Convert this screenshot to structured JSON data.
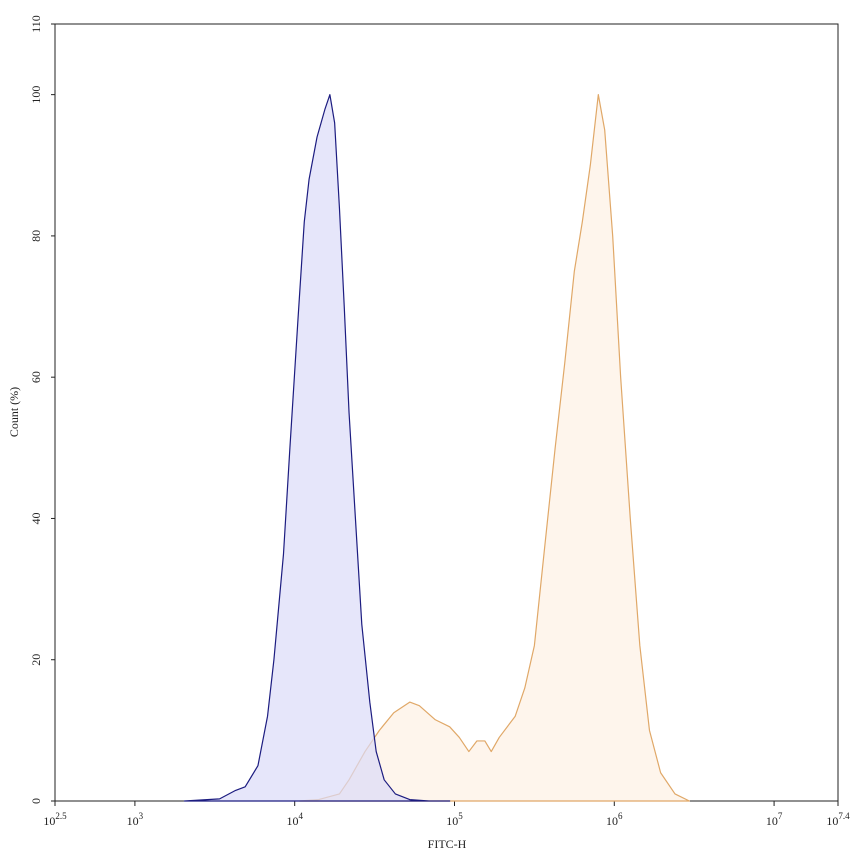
{
  "chart_data": {
    "type": "histogram-overlay",
    "xlabel": "FITC-H",
    "ylabel": "Count (%)",
    "xscale": "log",
    "xlim": [
      316.2,
      25118864
    ],
    "ylim": [
      0,
      110
    ],
    "xticks": [
      {
        "value": 316.2,
        "label": "10",
        "power": "2.5"
      },
      {
        "value": 1000,
        "label": "10",
        "power": "3"
      },
      {
        "value": 10000,
        "label": "10",
        "power": "4"
      },
      {
        "value": 100000,
        "label": "10",
        "power": "5"
      },
      {
        "value": 1000000,
        "label": "10",
        "power": "6"
      },
      {
        "value": 10000000,
        "label": "10",
        "power": "7"
      },
      {
        "value": 25118864,
        "label": "10",
        "power": "7.4"
      }
    ],
    "yticks": [
      0,
      20,
      40,
      60,
      80,
      100,
      110
    ],
    "series": [
      {
        "color": "#e0a868",
        "fill": "#fdf1e4",
        "x": [
          10720,
          14130,
          19050,
          21880,
          27540,
          33880,
          41690,
          52480,
          60260,
          75860,
          93330,
          107200,
          123000,
          138000,
          154900,
          169800,
          190500,
          239900,
          275400,
          316200,
          363100,
          426600,
          489800,
          562300,
          631000,
          707900,
          794300,
          871000,
          977200,
          1096000,
          1259000,
          1445000,
          1660000,
          1950000,
          2399000,
          2951000
        ],
        "values": [
          0,
          0.2,
          1,
          3,
          7,
          10,
          12.5,
          14,
          13.5,
          11.5,
          10.5,
          9,
          7,
          8.5,
          8.5,
          7,
          9,
          12,
          16,
          22,
          35,
          50,
          62,
          75,
          82,
          90,
          100,
          95,
          80,
          60,
          40,
          22,
          10,
          4,
          1,
          0
        ]
      },
      {
        "color": "#1c1c80",
        "fill": "#dcdcf8",
        "x": [
          2042,
          3388,
          4266,
          4898,
          5888,
          6761,
          7413,
          8511,
          9333,
          10470,
          11480,
          12300,
          13800,
          15490,
          16600,
          17780,
          19050,
          20420,
          21880,
          23990,
          26300,
          29510,
          32360,
          36310,
          42660,
          52480,
          69180,
          93330
        ],
        "values": [
          0,
          0.3,
          1.5,
          2,
          5,
          12,
          20,
          35,
          50,
          68,
          82,
          88,
          94,
          98,
          100,
          96,
          84,
          70,
          55,
          40,
          25,
          14,
          7,
          3,
          1,
          0.2,
          0,
          0
        ]
      }
    ]
  }
}
